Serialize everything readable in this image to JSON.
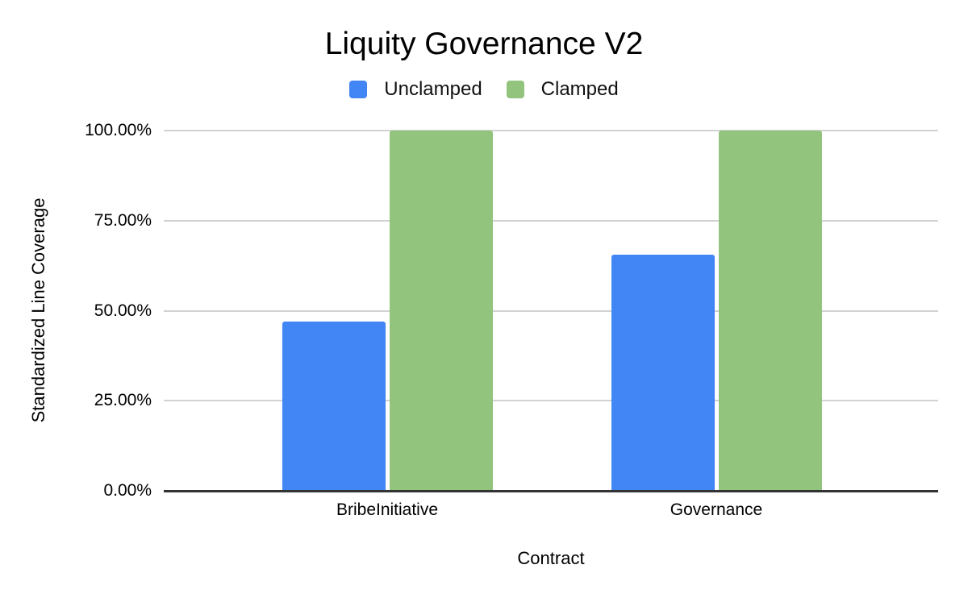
{
  "chart_data": {
    "type": "bar",
    "title": "Liquity Governance V2",
    "categories": [
      "BribeInitiative",
      "Governance"
    ],
    "series": [
      {
        "name": "Unclamped",
        "color": "#4285F4",
        "values": [
          47.0,
          65.5
        ]
      },
      {
        "name": "Clamped",
        "color": "#93C47D",
        "values": [
          100.0,
          100.0
        ]
      }
    ],
    "xlabel": "Contract",
    "ylabel": "Standardized Line Coverage",
    "ylim": [
      0,
      100
    ],
    "yticks": [
      {
        "value": 0,
        "label": "0.00%"
      },
      {
        "value": 25,
        "label": "25.00%"
      },
      {
        "value": 50,
        "label": "50.00%"
      },
      {
        "value": 75,
        "label": "75.00%"
      },
      {
        "value": 100,
        "label": "100.00%"
      }
    ],
    "grid": true,
    "legend_position": "top",
    "colors": {
      "gridline": "#d2d2d2",
      "baseline": "#333333",
      "background": "#ffffff",
      "text": "#000000"
    }
  }
}
